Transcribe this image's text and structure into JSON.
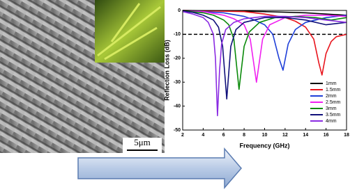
{
  "scale_bar": "5μm",
  "chart_data": {
    "type": "line",
    "xlabel": "Frequency (GHz)",
    "ylabel": "Reflection Loss (dB)",
    "xlim": [
      2,
      18
    ],
    "xticks": [
      2,
      4,
      6,
      8,
      10,
      12,
      14,
      16,
      18
    ],
    "ylim": [
      -50,
      0
    ],
    "yticks": [
      0,
      -10,
      -20,
      -30,
      -40,
      -50
    ],
    "reference_line": -10,
    "legend": "lower right",
    "series": [
      {
        "name": "1mm",
        "color": "#000000",
        "x": [
          2,
          6,
          10,
          14,
          18
        ],
        "values": [
          0,
          -0.2,
          -0.5,
          -1,
          -2
        ]
      },
      {
        "name": "1.5mm",
        "color": "#e8141c",
        "x": [
          2,
          8,
          10,
          12,
          13,
          14,
          14.8,
          15.3,
          15.6,
          16,
          16.5,
          17,
          18
        ],
        "values": [
          0,
          -0.5,
          -1.5,
          -3,
          -4.5,
          -7,
          -12,
          -22,
          -27,
          -18,
          -13,
          -11,
          -10
        ]
      },
      {
        "name": "2mm",
        "color": "#1f3fd8",
        "x": [
          2,
          6,
          8,
          9,
          10,
          10.8,
          11.4,
          11.8,
          12.3,
          13,
          14,
          16,
          18
        ],
        "values": [
          0,
          -1,
          -2.5,
          -4,
          -6,
          -10,
          -20,
          -25,
          -14,
          -8,
          -5,
          -3,
          -2
        ]
      },
      {
        "name": "2.5mm",
        "color": "#f020f0",
        "x": [
          2,
          4,
          6,
          7,
          8,
          8.6,
          9.2,
          9.8,
          10.5,
          12,
          14,
          16,
          18
        ],
        "values": [
          -0.1,
          -0.5,
          -2,
          -3.5,
          -6,
          -12,
          -30,
          -12,
          -6,
          -3,
          -2,
          -2,
          -2.5
        ]
      },
      {
        "name": "3mm",
        "color": "#0a8a0a",
        "x": [
          2,
          4,
          5,
          6,
          6.5,
          7,
          7.5,
          8,
          8.5,
          9.5,
          11,
          13,
          15,
          16.5,
          18
        ],
        "values": [
          -0.2,
          -1,
          -2,
          -4,
          -6,
          -12,
          -33,
          -15,
          -9,
          -5,
          -3,
          -2.5,
          -3,
          -4,
          -3
        ]
      },
      {
        "name": "3.5mm",
        "color": "#10107a",
        "x": [
          2,
          3,
          4,
          5,
          5.5,
          5.9,
          6.3,
          6.7,
          7.2,
          8,
          10,
          12,
          14,
          16,
          18
        ],
        "values": [
          -0.3,
          -0.8,
          -2,
          -4,
          -7,
          -15,
          -37,
          -15,
          -8,
          -5,
          -3,
          -3,
          -4,
          -6,
          -5
        ]
      },
      {
        "name": "4mm",
        "color": "#8a2be2",
        "x": [
          2,
          3,
          4,
          4.5,
          5,
          5.2,
          5.4,
          5.6,
          5.8,
          6.2,
          7,
          8,
          10,
          12,
          14,
          16,
          18
        ],
        "values": [
          -0.5,
          -1.5,
          -3,
          -5,
          -10,
          -20,
          -44,
          -25,
          -14,
          -8,
          -5,
          -3.5,
          -2.5,
          -2.5,
          -3,
          -4,
          -5
        ]
      }
    ]
  }
}
